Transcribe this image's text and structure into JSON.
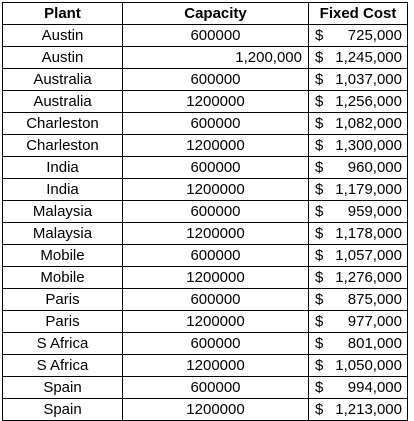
{
  "table": {
    "headers": [
      "Plant",
      "Capacity",
      "Fixed Cost"
    ],
    "rows": [
      {
        "plant": "Austin",
        "capacity": "600000",
        "cap_align": "center",
        "cost_sym": "$",
        "cost_amt": "725,000"
      },
      {
        "plant": "Austin",
        "capacity": "1,200,000",
        "cap_align": "right",
        "cost_sym": "$",
        "cost_amt": "1,245,000"
      },
      {
        "plant": "Australia",
        "capacity": "600000",
        "cap_align": "center",
        "cost_sym": "$",
        "cost_amt": "1,037,000"
      },
      {
        "plant": "Australia",
        "capacity": "1200000",
        "cap_align": "center",
        "cost_sym": "$",
        "cost_amt": "1,256,000"
      },
      {
        "plant": "Charleston",
        "capacity": "600000",
        "cap_align": "center",
        "cost_sym": "$",
        "cost_amt": "1,082,000"
      },
      {
        "plant": "Charleston",
        "capacity": "1200000",
        "cap_align": "center",
        "cost_sym": "$",
        "cost_amt": "1,300,000"
      },
      {
        "plant": "India",
        "capacity": "600000",
        "cap_align": "center",
        "cost_sym": "$",
        "cost_amt": "960,000"
      },
      {
        "plant": "India",
        "capacity": "1200000",
        "cap_align": "center",
        "cost_sym": "$",
        "cost_amt": "1,179,000"
      },
      {
        "plant": "Malaysia",
        "capacity": "600000",
        "cap_align": "center",
        "cost_sym": "$",
        "cost_amt": "959,000"
      },
      {
        "plant": "Malaysia",
        "capacity": "1200000",
        "cap_align": "center",
        "cost_sym": "$",
        "cost_amt": "1,178,000"
      },
      {
        "plant": "Mobile",
        "capacity": "600000",
        "cap_align": "center",
        "cost_sym": "$",
        "cost_amt": "1,057,000"
      },
      {
        "plant": "Mobile",
        "capacity": "1200000",
        "cap_align": "center",
        "cost_sym": "$",
        "cost_amt": "1,276,000"
      },
      {
        "plant": "Paris",
        "capacity": "600000",
        "cap_align": "center",
        "cost_sym": "$",
        "cost_amt": "875,000"
      },
      {
        "plant": "Paris",
        "capacity": "1200000",
        "cap_align": "center",
        "cost_sym": "$",
        "cost_amt": "977,000"
      },
      {
        "plant": "S Africa",
        "capacity": "600000",
        "cap_align": "center",
        "cost_sym": "$",
        "cost_amt": "801,000"
      },
      {
        "plant": "S Africa",
        "capacity": "1200000",
        "cap_align": "center",
        "cost_sym": "$",
        "cost_amt": "1,050,000"
      },
      {
        "plant": "Spain",
        "capacity": "600000",
        "cap_align": "center",
        "cost_sym": "$",
        "cost_amt": "994,000"
      },
      {
        "plant": "Spain",
        "capacity": "1200000",
        "cap_align": "center",
        "cost_sym": "$",
        "cost_amt": "1,213,000"
      }
    ]
  }
}
